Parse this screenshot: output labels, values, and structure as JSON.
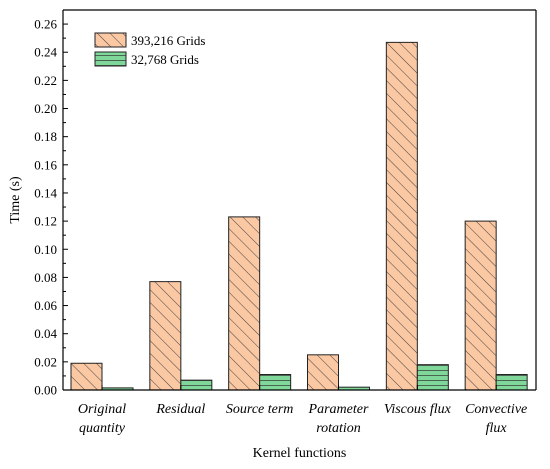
{
  "chart_data": {
    "type": "bar",
    "xlabel": "Kernel functions",
    "ylabel": "Time (s)",
    "ylim": [
      0,
      0.27
    ],
    "yticks": [
      "0.00",
      "0.02",
      "0.04",
      "0.06",
      "0.08",
      "0.10",
      "0.12",
      "0.14",
      "0.16",
      "0.18",
      "0.20",
      "0.22",
      "0.24",
      "0.26"
    ],
    "categories": [
      [
        "Original",
        "quantity"
      ],
      [
        "Residual"
      ],
      [
        "Source term"
      ],
      [
        "Parameter",
        "rotation"
      ],
      [
        "Viscous flux"
      ],
      [
        "Convective",
        "flux"
      ]
    ],
    "series": [
      {
        "name": "393,216 Grids",
        "color": "#fbc8a4",
        "pattern": "hatch",
        "values": [
          0.019,
          0.077,
          0.123,
          0.025,
          0.247,
          0.12
        ]
      },
      {
        "name": "32,768 Grids",
        "color": "#7fd79a",
        "pattern": "horizontal",
        "values": [
          0.0015,
          0.007,
          0.011,
          0.002,
          0.018,
          0.011
        ]
      }
    ],
    "legend_position": "top-left",
    "grid": false
  }
}
